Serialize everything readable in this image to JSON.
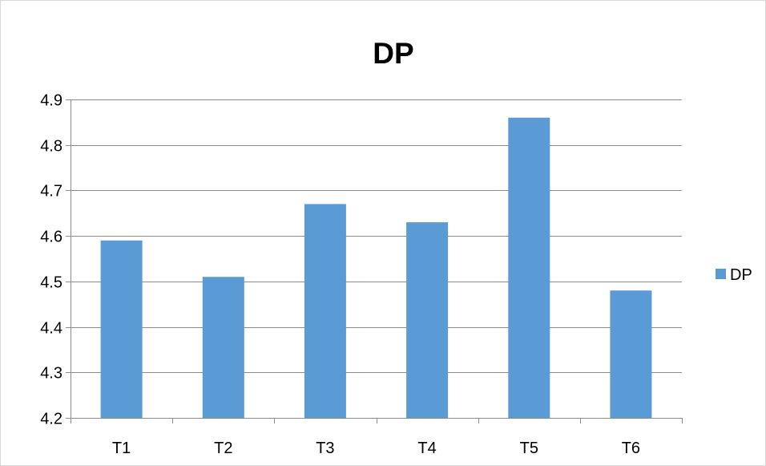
{
  "chart_data": {
    "type": "bar",
    "title": "DP",
    "xlabel": "",
    "ylabel": "",
    "categories": [
      "T1",
      "T2",
      "T3",
      "T4",
      "T5",
      "T6"
    ],
    "series": [
      {
        "name": "DP",
        "values": [
          4.59,
          4.51,
          4.67,
          4.63,
          4.86,
          4.48
        ],
        "color": "#5b9bd5"
      }
    ],
    "ylim": [
      4.2,
      4.9
    ],
    "yticks": [
      "4.2",
      "4.3",
      "4.4",
      "4.5",
      "4.6",
      "4.7",
      "4.8",
      "4.9"
    ],
    "grid": true,
    "gridline_color": "#8c8c8c",
    "axis_color": "#8c8c8c",
    "legend_position": "right"
  }
}
